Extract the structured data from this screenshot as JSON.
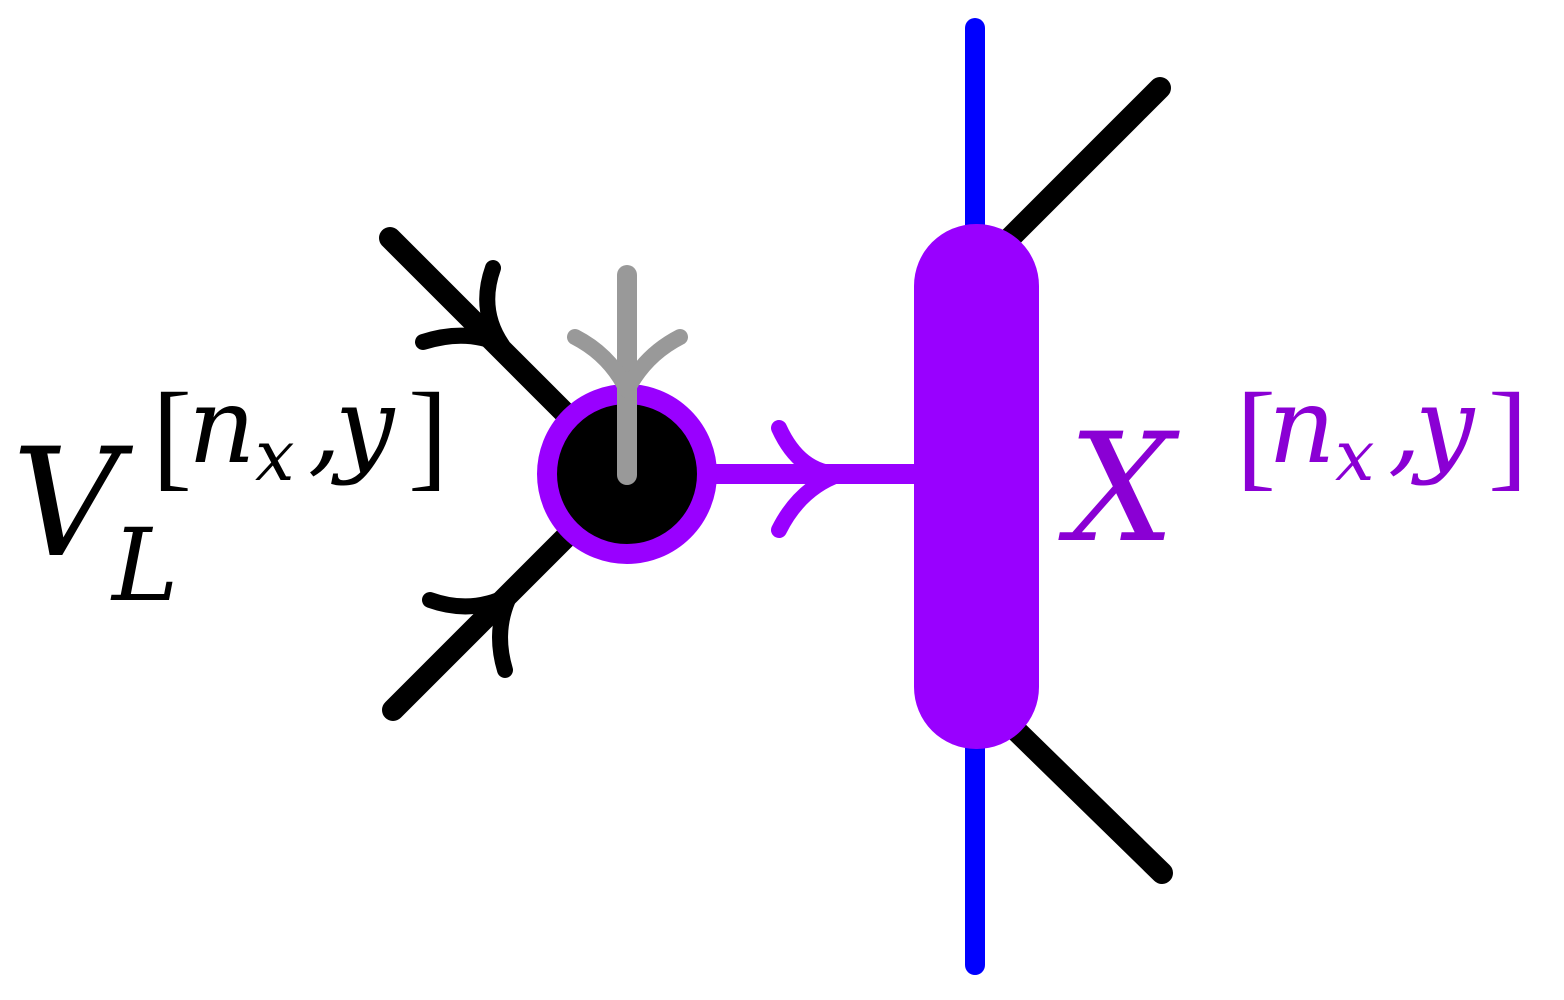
{
  "diagram": {
    "colors": {
      "black": "#000000",
      "blue": "#0000ff",
      "purple": "#9900ff",
      "gray": "#999999",
      "label_purple": "#8a00d4"
    },
    "left_tensor": {
      "label_base": "V",
      "label_subscript": "L",
      "label_super_open": "[",
      "label_super_n": "n",
      "label_super_n_sub": "x",
      "label_super_sep": ",",
      "label_super_y": "y",
      "label_super_close": "]"
    },
    "right_tensor": {
      "label_base": "X",
      "label_super_open": "[",
      "label_super_n": "n",
      "label_super_n_sub": "x",
      "label_super_sep": ",",
      "label_super_y": "y",
      "label_super_close": "]"
    }
  }
}
